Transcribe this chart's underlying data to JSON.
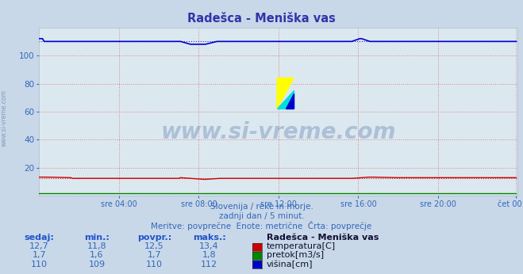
{
  "title": "Radešca - Meniška vas",
  "bg_color": "#c8d8e8",
  "plot_bg_color": "#dce8f0",
  "grid_color": "#e08080",
  "grid_style": ":",
  "x_ticks_labels": [
    "sre 04:00",
    "sre 08:00",
    "sre 12:00",
    "sre 16:00",
    "sre 20:00",
    "čet 00:00"
  ],
  "x_ticks_pos": [
    48,
    96,
    144,
    192,
    240,
    287
  ],
  "x_total": 288,
  "y_min": 0,
  "y_max": 120,
  "y_ticks": [
    20,
    40,
    60,
    80,
    100
  ],
  "watermark_text": "www.si-vreme.com",
  "subtitle1": "Slovenija / reke in morje.",
  "subtitle2": "zadnji dan / 5 minut.",
  "subtitle3": "Meritve: povprečne  Enote: metrične  Črta: povprečje",
  "temp_value": 12.5,
  "temp_min": 11.8,
  "temp_max": 13.4,
  "temp_sedaj": "12,7",
  "temp_min_str": "11,8",
  "temp_avg_str": "12,5",
  "temp_max_str": "13,4",
  "flow_sedaj": "1,7",
  "flow_min_str": "1,6",
  "flow_avg_str": "1,7",
  "flow_max_str": "1,8",
  "flow_value": 1.7,
  "flow_min": 1.6,
  "flow_max": 1.8,
  "height_value": 110,
  "height_min": 109,
  "height_max": 112,
  "height_sedaj": "110",
  "height_min_str": "109",
  "height_avg_str": "110",
  "height_max_str": "112",
  "temp_color": "#cc0000",
  "flow_color": "#008800",
  "height_color": "#0000cc",
  "title_color": "#3333aa",
  "text_color": "#3366bb",
  "bold_text_color": "#2255cc",
  "legend_title": "Radešca - Meniška vas",
  "col_headers": [
    "sedaj:",
    "min.:",
    "povpr.:",
    "maks.:"
  ],
  "temp_label": "temperatura[C]",
  "flow_label": "pretok[m3/s]",
  "height_label": "višina[cm]",
  "side_text": "www.si-vreme.com"
}
